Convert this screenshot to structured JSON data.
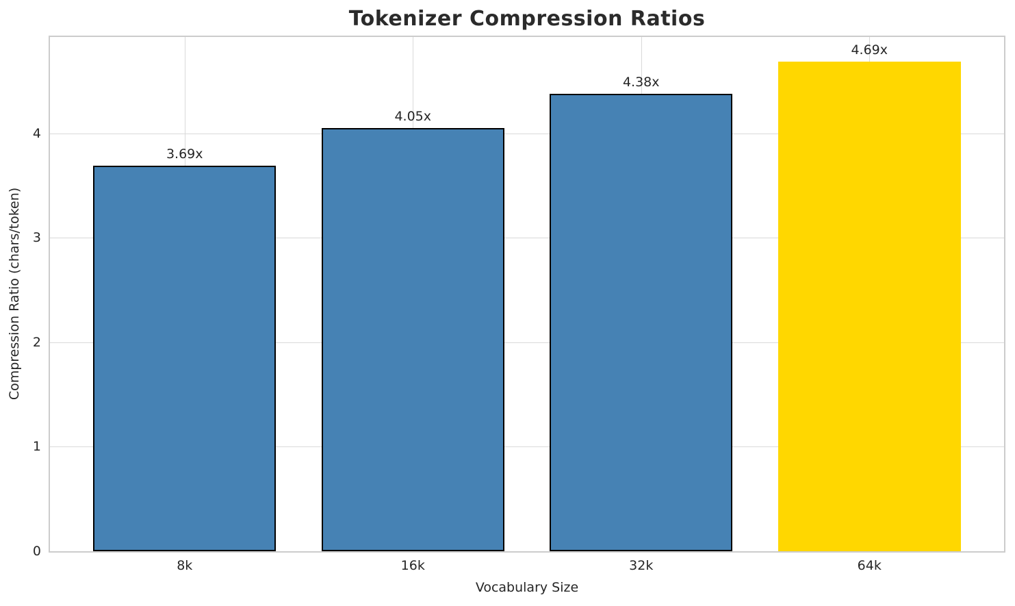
{
  "chart_data": {
    "type": "bar",
    "title": "Tokenizer Compression Ratios",
    "xlabel": "Vocabulary Size",
    "ylabel": "Compression Ratio (chars/token)",
    "categories": [
      "8k",
      "16k",
      "32k",
      "64k"
    ],
    "values": [
      3.69,
      4.05,
      4.38,
      4.69
    ],
    "bar_labels": [
      "3.69x",
      "4.05x",
      "4.38x",
      "4.69x"
    ],
    "yticks": [
      0,
      1,
      2,
      3,
      4
    ],
    "ylim": [
      0,
      4.9245
    ],
    "xlim": [
      -0.59,
      3.59
    ],
    "bar_width": 0.8,
    "grid": true,
    "legend_position": "none",
    "highlight_index": 3,
    "bar_colors": [
      "#4682b4",
      "#4682b4",
      "#4682b4",
      "#ffd700"
    ],
    "bar_edge_colors": [
      "#000000",
      "#000000",
      "#000000",
      "none"
    ],
    "colors": {
      "bar_default": "#4682b4",
      "bar_highlight": "#ffd700",
      "bar_edge": "#000000",
      "grid": "#d9d9d9",
      "spine": "#cccccc",
      "text": "#262626",
      "title": "#2b2b2b",
      "background": "#ffffff"
    }
  }
}
